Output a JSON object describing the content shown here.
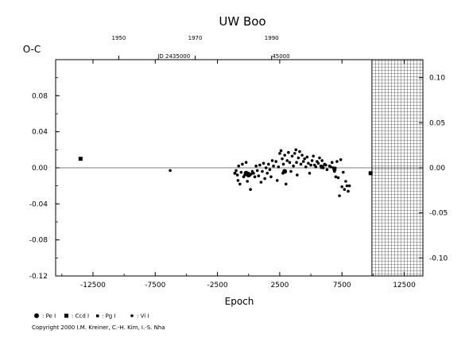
{
  "chart_data": {
    "type": "scatter",
    "title": "UW Boo",
    "ylabel": "O-C",
    "xlabel": "Epoch",
    "xlim": [
      -15500,
      14000
    ],
    "ylim": [
      -0.12,
      0.12
    ],
    "right_ylim": [
      -0.12,
      0.12
    ],
    "x_ticks": [
      "-12500",
      "-7500",
      "-2500",
      "2500",
      "7500",
      "12500"
    ],
    "x_tick_values": [
      -12500,
      -7500,
      -2500,
      2500,
      7500,
      12500
    ],
    "y_ticks": [
      "-0.12",
      "-0.08",
      "-0.04",
      "0.00",
      "0.04",
      "0.08"
    ],
    "y_tick_values": [
      -0.12,
      -0.08,
      -0.04,
      0.0,
      0.04,
      0.08
    ],
    "right_ticks": [
      "0.10",
      "0.05",
      "0.00",
      "-0.05",
      "-0.10"
    ],
    "right_tick_values": [
      0.1,
      0.05,
      0.0,
      -0.05,
      -0.1
    ],
    "top_year_ticks": [
      "1950",
      "1970",
      "1990"
    ],
    "top_year_values": [
      -10430,
      -4290,
      1850
    ],
    "top_jd_label": "JD 2435000",
    "top_jd_label_x": -6000,
    "top_mid_label": "45000",
    "top_mid_label_x": 2600,
    "prediction_region_x": [
      9900,
      14000
    ],
    "series": [
      {
        "name": "Vis",
        "marker": "small-dot",
        "points": [
          [
            -6300,
            -0.003
          ],
          [
            -1000,
            -0.003
          ],
          [
            -900,
            -0.008
          ],
          [
            -850,
            -0.014
          ],
          [
            -800,
            0.002
          ],
          [
            -700,
            -0.018
          ],
          [
            -600,
            -0.005
          ],
          [
            -500,
            0.004
          ],
          [
            -400,
            -0.01
          ],
          [
            -300,
            -0.008
          ],
          [
            -200,
            0.006
          ],
          [
            -100,
            -0.015
          ],
          [
            0,
            -0.006
          ],
          [
            100,
            -0.008
          ],
          [
            150,
            -0.024
          ],
          [
            200,
            -0.007
          ],
          [
            300,
            -0.004
          ],
          [
            400,
            -0.006
          ],
          [
            500,
            -0.01
          ],
          [
            600,
            0.002
          ],
          [
            700,
            -0.003
          ],
          [
            800,
            -0.009
          ],
          [
            900,
            0.003
          ],
          [
            1000,
            -0.016
          ],
          [
            1100,
            -0.004
          ],
          [
            1200,
            0.005
          ],
          [
            1300,
            -0.012
          ],
          [
            1400,
            0.0
          ],
          [
            1500,
            -0.006
          ],
          [
            1600,
            0.004
          ],
          [
            1700,
            -0.002
          ],
          [
            1800,
            -0.01
          ],
          [
            1900,
            0.008
          ],
          [
            2000,
            0.002
          ],
          [
            2200,
            0.007
          ],
          [
            2300,
            -0.014
          ],
          [
            2400,
            0.001
          ],
          [
            2500,
            0.016
          ],
          [
            2600,
            0.019
          ],
          [
            2700,
            0.01
          ],
          [
            2750,
            -0.006
          ],
          [
            2800,
            0.004
          ],
          [
            2900,
            0.014
          ],
          [
            3000,
            -0.018
          ],
          [
            3100,
            0.008
          ],
          [
            3200,
            0.017
          ],
          [
            3300,
            0.006
          ],
          [
            3400,
            -0.004
          ],
          [
            3500,
            0.013
          ],
          [
            3600,
            0.002
          ],
          [
            3700,
            0.016
          ],
          [
            3800,
            0.02
          ],
          [
            3850,
            0.006
          ],
          [
            3900,
            -0.008
          ],
          [
            4000,
            0.011
          ],
          [
            4100,
            0.018
          ],
          [
            4200,
            0.004
          ],
          [
            4300,
            0.014
          ],
          [
            4400,
            0.007
          ],
          [
            4500,
            0.01
          ],
          [
            4600,
            0.001
          ],
          [
            4700,
            0.012
          ],
          [
            4800,
            0.005
          ],
          [
            4900,
            -0.006
          ],
          [
            5000,
            0.003
          ],
          [
            5100,
            0.008
          ],
          [
            5200,
            0.013
          ],
          [
            5300,
            0.003
          ],
          [
            5400,
            0.001
          ],
          [
            5500,
            0.007
          ],
          [
            5600,
            0.005
          ],
          [
            5700,
            0.011
          ],
          [
            5800,
            0.002
          ],
          [
            5900,
            0.008
          ],
          [
            6000,
            0.0
          ],
          [
            6100,
            0.004
          ],
          [
            6200,
            0.003
          ],
          [
            6300,
            -0.002
          ],
          [
            6500,
            0.002
          ],
          [
            6600,
            0.001
          ],
          [
            6700,
            0.006
          ],
          [
            6800,
            0.0
          ],
          [
            6900,
            -0.004
          ],
          [
            7000,
            -0.01
          ],
          [
            7100,
            0.007
          ],
          [
            7200,
            -0.011
          ],
          [
            7300,
            -0.031
          ],
          [
            7400,
            0.009
          ],
          [
            7500,
            -0.021
          ],
          [
            7600,
            -0.005
          ],
          [
            7700,
            -0.024
          ],
          [
            7800,
            -0.015
          ],
          [
            7900,
            -0.02
          ],
          [
            8000,
            -0.026
          ],
          [
            8100,
            -0.02
          ]
        ]
      },
      {
        "name": "Pg",
        "marker": "square-small",
        "points": [
          [
            -1100,
            -0.006
          ]
        ]
      },
      {
        "name": "Pe",
        "marker": "large-dot",
        "points": [
          [
            -200,
            -0.006
          ],
          [
            0,
            -0.008
          ],
          [
            2900,
            -0.004
          ]
        ]
      },
      {
        "name": "Ccd",
        "marker": "square",
        "points": [
          [
            -13500,
            0.01
          ],
          [
            5900,
            0.001
          ],
          [
            6900,
            -0.001
          ],
          [
            9800,
            -0.006
          ]
        ]
      }
    ],
    "legend": [
      "Pe",
      "Ccd",
      "Pg",
      "Vi"
    ],
    "legend_placement": "bottom-left"
  },
  "legend_labels": {
    "pe": ": Pe I",
    "ccd": ": Ccd I",
    "pg": ": Pg I",
    "vi": ": Vi I"
  },
  "copyright": "Copyright 2000 I.M. Kreiner, C.-H. Kim, I.-S. Nha"
}
